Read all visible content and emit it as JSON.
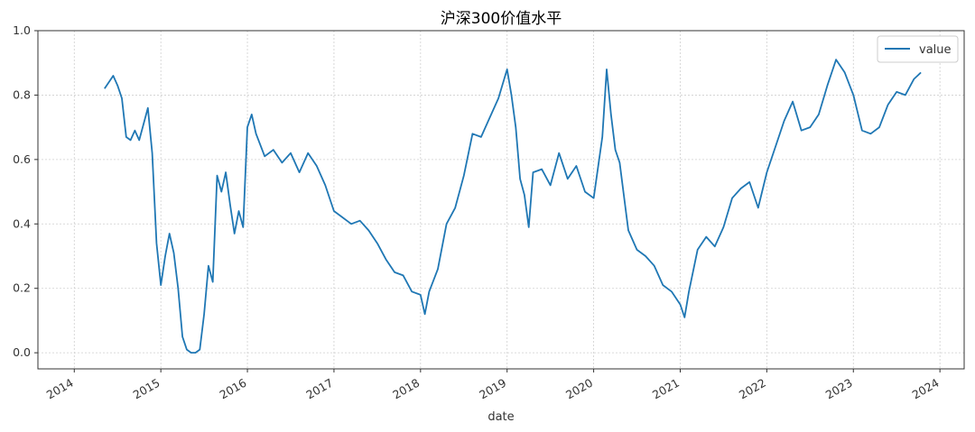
{
  "chart_data": {
    "type": "line",
    "title": "沪深300价值水平",
    "xlabel": "date",
    "ylabel": "",
    "x_ticks": [
      "2014",
      "2015",
      "2016",
      "2017",
      "2018",
      "2019",
      "2020",
      "2021",
      "2022",
      "2023",
      "2024"
    ],
    "y_ticks": [
      "0.0",
      "0.2",
      "0.4",
      "0.6",
      "0.8",
      "1.0"
    ],
    "xlim": [
      2013.58,
      2024.28
    ],
    "ylim": [
      -0.05,
      1.0
    ],
    "grid": true,
    "legend_position": "top-right",
    "series": [
      {
        "name": "value",
        "color": "#1f77b4",
        "x": [
          2014.35,
          2014.4,
          2014.45,
          2014.5,
          2014.55,
          2014.6,
          2014.65,
          2014.7,
          2014.75,
          2014.8,
          2014.85,
          2014.9,
          2014.95,
          2015.0,
          2015.05,
          2015.1,
          2015.15,
          2015.2,
          2015.25,
          2015.3,
          2015.35,
          2015.4,
          2015.45,
          2015.5,
          2015.55,
          2015.6,
          2015.65,
          2015.7,
          2015.75,
          2015.8,
          2015.85,
          2015.9,
          2015.95,
          2016.0,
          2016.05,
          2016.1,
          2016.2,
          2016.3,
          2016.4,
          2016.5,
          2016.6,
          2016.7,
          2016.8,
          2016.9,
          2017.0,
          2017.1,
          2017.2,
          2017.3,
          2017.4,
          2017.5,
          2017.6,
          2017.7,
          2017.8,
          2017.9,
          2018.0,
          2018.05,
          2018.1,
          2018.2,
          2018.3,
          2018.4,
          2018.5,
          2018.6,
          2018.7,
          2018.8,
          2018.9,
          2019.0,
          2019.05,
          2019.1,
          2019.15,
          2019.2,
          2019.25,
          2019.3,
          2019.4,
          2019.5,
          2019.6,
          2019.7,
          2019.8,
          2019.9,
          2020.0,
          2020.1,
          2020.15,
          2020.2,
          2020.25,
          2020.3,
          2020.4,
          2020.5,
          2020.6,
          2020.7,
          2020.8,
          2020.9,
          2021.0,
          2021.05,
          2021.1,
          2021.2,
          2021.3,
          2021.4,
          2021.5,
          2021.6,
          2021.7,
          2021.8,
          2021.9,
          2022.0,
          2022.1,
          2022.2,
          2022.3,
          2022.4,
          2022.5,
          2022.6,
          2022.7,
          2022.8,
          2022.9,
          2023.0,
          2023.1,
          2023.2,
          2023.3,
          2023.4,
          2023.5,
          2023.6,
          2023.7,
          2023.78
        ],
        "values": [
          0.82,
          0.84,
          0.86,
          0.83,
          0.79,
          0.67,
          0.66,
          0.69,
          0.66,
          0.71,
          0.76,
          0.62,
          0.34,
          0.21,
          0.3,
          0.37,
          0.31,
          0.2,
          0.05,
          0.01,
          0.0,
          0.0,
          0.01,
          0.12,
          0.27,
          0.22,
          0.55,
          0.5,
          0.56,
          0.46,
          0.37,
          0.44,
          0.39,
          0.7,
          0.74,
          0.68,
          0.61,
          0.63,
          0.59,
          0.62,
          0.56,
          0.62,
          0.58,
          0.52,
          0.44,
          0.42,
          0.4,
          0.41,
          0.38,
          0.34,
          0.29,
          0.25,
          0.24,
          0.19,
          0.18,
          0.12,
          0.19,
          0.26,
          0.4,
          0.45,
          0.55,
          0.68,
          0.67,
          0.73,
          0.79,
          0.88,
          0.8,
          0.7,
          0.54,
          0.49,
          0.39,
          0.56,
          0.57,
          0.52,
          0.62,
          0.54,
          0.58,
          0.5,
          0.48,
          0.67,
          0.88,
          0.74,
          0.63,
          0.59,
          0.38,
          0.32,
          0.3,
          0.27,
          0.21,
          0.19,
          0.15,
          0.11,
          0.19,
          0.32,
          0.36,
          0.33,
          0.39,
          0.48,
          0.51,
          0.53,
          0.45,
          0.56,
          0.64,
          0.72,
          0.78,
          0.69,
          0.7,
          0.74,
          0.83,
          0.91,
          0.87,
          0.8,
          0.69,
          0.68,
          0.7,
          0.77,
          0.81,
          0.8,
          0.85,
          0.87
        ]
      }
    ]
  }
}
